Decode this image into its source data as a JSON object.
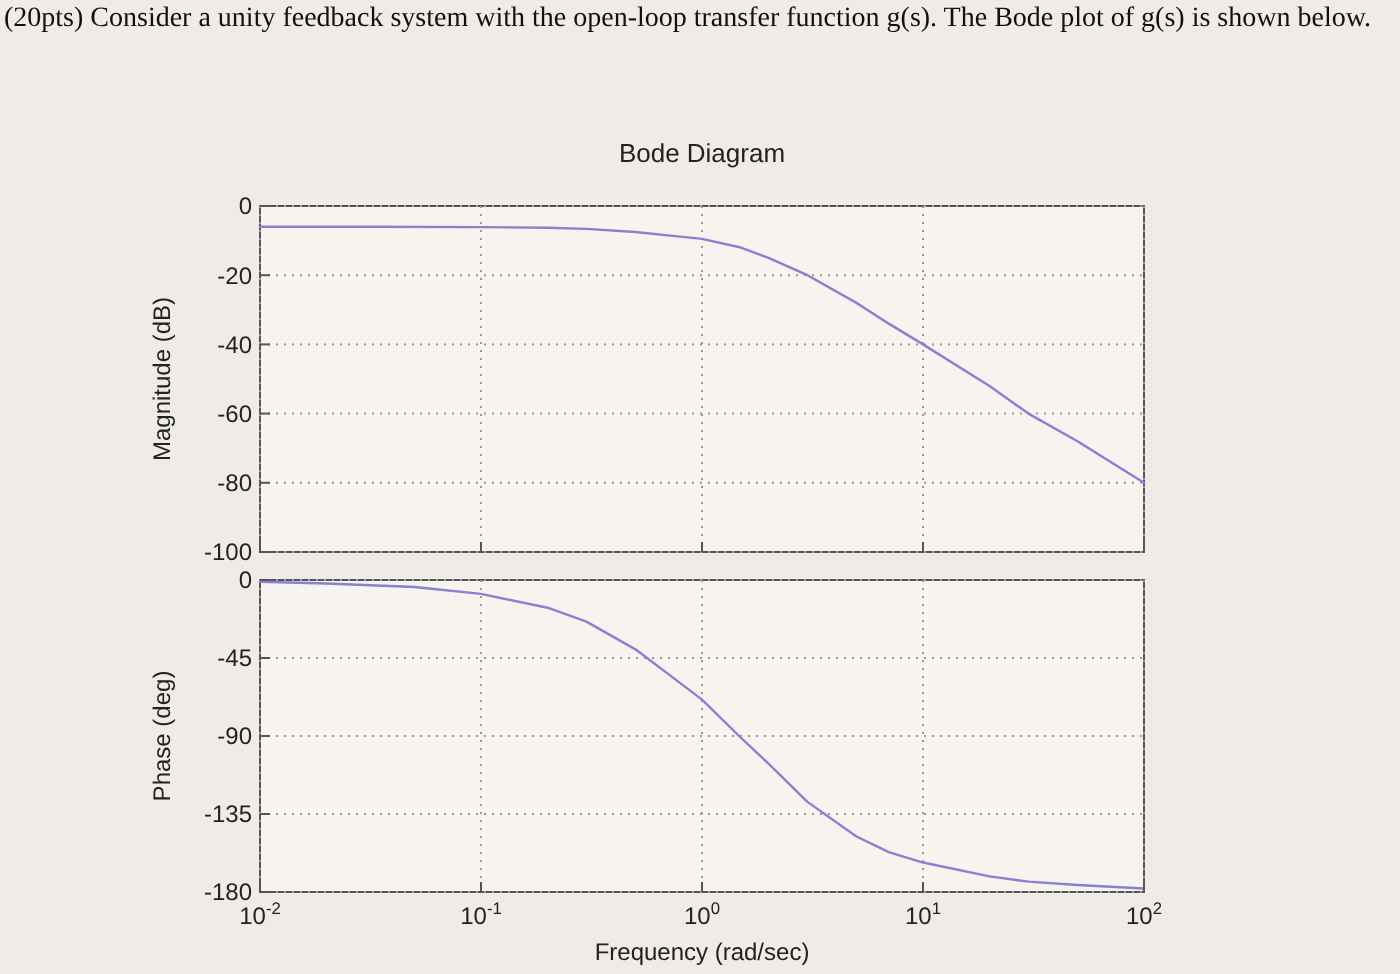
{
  "chart_data": [
    {
      "type": "line",
      "title": "Bode Diagram",
      "annotations": [
        "(20pts) Consider a unity feedback system with the open-loop transfer function g(s). The Bode plot of g(s) is shown below."
      ],
      "ylabel": "Magnitude (dB)",
      "log": "x",
      "xlim": [
        0.01,
        100
      ],
      "xticks": [
        {
          "value": 0.01,
          "label": null
        },
        {
          "value": 0.1,
          "label": null
        },
        {
          "value": 1,
          "label": null
        },
        {
          "value": 10,
          "label": null
        },
        {
          "value": 100,
          "label": null
        }
      ],
      "ylim": [
        -100,
        0
      ],
      "yticks": [
        0,
        -20,
        -40,
        -60,
        -80,
        -100
      ],
      "grid": true,
      "tick_labels": "y",
      "series": [
        {
          "color": "#8a7fd0",
          "x": [
            0.01,
            0.03,
            0.1,
            0.2,
            0.3,
            0.5,
            0.7,
            1,
            1.5,
            2,
            3,
            5,
            7,
            10,
            20,
            30,
            50,
            100
          ],
          "values": [
            -6,
            -6,
            -6.1,
            -6.3,
            -6.6,
            -7.5,
            -8.5,
            -9.5,
            -12,
            -15,
            -20,
            -28,
            -34,
            -40,
            -52,
            -60,
            -68,
            -80
          ]
        }
      ]
    },
    {
      "type": "line",
      "ylabel": "Phase (deg)",
      "xlabel": "Frequency  (rad/sec)",
      "log": "x",
      "xlim": [
        0.01,
        100
      ],
      "xticks": [
        {
          "value": 0.01,
          "label": "10$^{-2}$"
        },
        {
          "value": 0.1,
          "label": "10$^{-1}$"
        },
        {
          "value": 1,
          "label": "10$^{0}$"
        },
        {
          "value": 10,
          "label": "10$^{1}$"
        },
        {
          "value": 100,
          "label": "10$^{2}$"
        }
      ],
      "ylim": [
        -180,
        0
      ],
      "yticks": [
        0,
        -45,
        -90,
        -135,
        -180
      ],
      "grid": true,
      "series": [
        {
          "color": "#8a7fd0",
          "x": [
            0.01,
            0.02,
            0.05,
            0.1,
            0.2,
            0.3,
            0.5,
            0.7,
            1,
            1.5,
            2,
            3,
            5,
            7,
            10,
            20,
            30,
            50,
            100
          ],
          "values": [
            -1,
            -2,
            -4,
            -8,
            -16,
            -24,
            -40,
            -54,
            -69,
            -91,
            -106,
            -128,
            -148,
            -157,
            -163,
            -171,
            -174,
            -176,
            -178
          ]
        }
      ]
    }
  ]
}
